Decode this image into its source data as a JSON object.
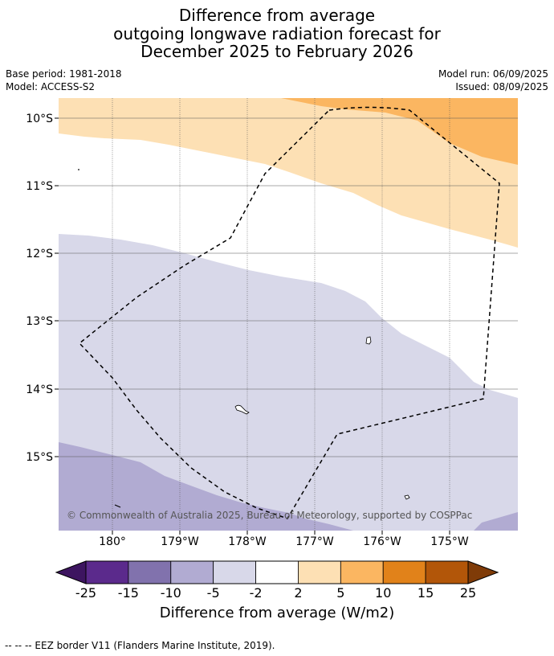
{
  "title": {
    "line1": "Difference from average",
    "line2": "outgoing longwave radiation forecast for",
    "line3": "December 2025 to February 2026"
  },
  "meta": {
    "base_period": "Base period: 1981-2018",
    "model": "Model: ACCESS-S2",
    "model_run": "Model run: 06/09/2025",
    "issued": "Issued: 08/09/2025"
  },
  "map": {
    "lat_labels": [
      "10°S",
      "11°S",
      "12°S",
      "13°S",
      "14°S",
      "15°S"
    ],
    "lon_labels": [
      "180°",
      "179°W",
      "178°W",
      "177°W",
      "176°W",
      "175°W"
    ],
    "copyright": "© Commonwealth of Australia 2025, Bureau of Meteorology, supported by COSPPac"
  },
  "colorbar": {
    "ticks": [
      "-25",
      "-15",
      "-10",
      "-5",
      "-2",
      "2",
      "5",
      "10",
      "15",
      "25"
    ],
    "colors": [
      "#3d1560",
      "#5b2a8c",
      "#8172ad",
      "#b1abd2",
      "#d8d8e9",
      "#ffffff",
      "#fde0b4",
      "#fbb661",
      "#e1821a",
      "#b25609",
      "#7f3b08"
    ],
    "label": "Difference from average (W/m2)"
  },
  "footer": "--  --  -- EEZ border V11 (Flanders Marine Institute, 2019)."
}
